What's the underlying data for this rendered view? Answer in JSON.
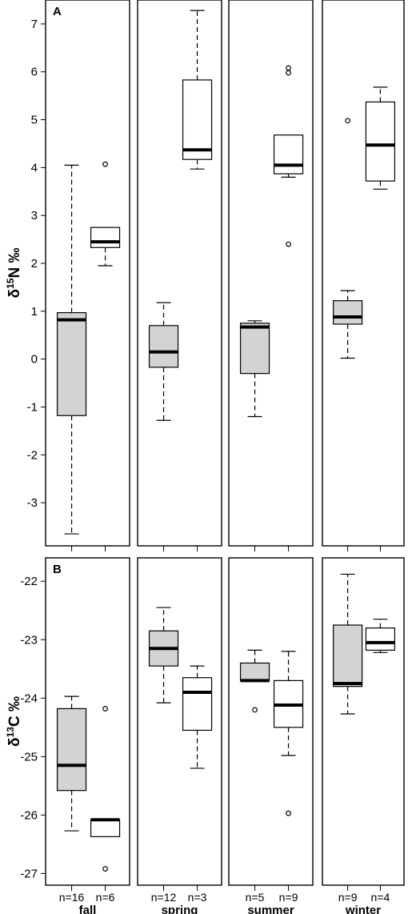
{
  "chart_data": [
    {
      "type": "boxplot",
      "panel": "A",
      "ylabel_main": "δ",
      "ylabel_sup": "15",
      "ylabel_rest": "N ‰",
      "ylim": [
        -3.9,
        7.5
      ],
      "yticks": [
        -3,
        -2,
        -1,
        0,
        1,
        2,
        3,
        4,
        5,
        6,
        7
      ],
      "fill_colors": [
        "#d3d3d3",
        "#ffffff"
      ],
      "groups": [
        {
          "season": "fall",
          "boxes": [
            {
              "n": "n=16",
              "min": -3.65,
              "q1": -1.18,
              "median": 0.82,
              "q3": 0.97,
              "max": 4.05,
              "outliers": []
            },
            {
              "n": "n=6",
              "min": 1.95,
              "q1": 2.33,
              "median": 2.45,
              "q3": 2.75,
              "max": 2.75,
              "outliers": [
                4.07
              ]
            }
          ]
        },
        {
          "season": "spring",
          "boxes": [
            {
              "n": "n=12",
              "min": -1.28,
              "q1": -0.17,
              "median": 0.15,
              "q3": 0.7,
              "max": 1.18,
              "outliers": []
            },
            {
              "n": "n=3",
              "min": 3.97,
              "q1": 4.17,
              "median": 4.37,
              "q3": 5.83,
              "max": 7.28,
              "outliers": []
            }
          ]
        },
        {
          "season": "summer",
          "boxes": [
            {
              "n": "n=5",
              "min": -1.2,
              "q1": -0.3,
              "median": 0.67,
              "q3": 0.75,
              "max": 0.8,
              "outliers": []
            },
            {
              "n": "n=9",
              "min": 3.8,
              "q1": 3.87,
              "median": 4.05,
              "q3": 4.68,
              "max": 4.68,
              "outliers": [
                6.08,
                5.98,
                2.4
              ]
            }
          ]
        },
        {
          "season": "winter",
          "boxes": [
            {
              "n": "n=9",
              "min": 0.02,
              "q1": 0.73,
              "median": 0.88,
              "q3": 1.22,
              "max": 1.43,
              "outliers": [
                4.98
              ]
            },
            {
              "n": "n=4",
              "min": 3.55,
              "q1": 3.72,
              "median": 4.47,
              "q3": 5.37,
              "max": 5.68,
              "outliers": []
            }
          ]
        }
      ]
    },
    {
      "type": "boxplot",
      "panel": "B",
      "ylabel_main": "δ",
      "ylabel_sup": "13",
      "ylabel_rest": "C ‰",
      "ylim": [
        -27.2,
        -21.6
      ],
      "yticks": [
        -27,
        -26,
        -25,
        -24,
        -23,
        -22
      ],
      "fill_colors": [
        "#d3d3d3",
        "#ffffff"
      ],
      "groups": [
        {
          "season": "fall",
          "boxes": [
            {
              "n": "n=16",
              "min": -26.27,
              "q1": -25.58,
              "median": -25.15,
              "q3": -24.18,
              "max": -23.97,
              "outliers": []
            },
            {
              "n": "n=6",
              "min": -26.37,
              "q1": -26.37,
              "median": -26.08,
              "q3": -26.08,
              "max": -26.08,
              "outliers": [
                -24.18,
                -26.92
              ]
            }
          ]
        },
        {
          "season": "spring",
          "boxes": [
            {
              "n": "n=12",
              "min": -24.08,
              "q1": -23.45,
              "median": -23.15,
              "q3": -22.85,
              "max": -22.45,
              "outliers": []
            },
            {
              "n": "n=3",
              "min": -25.2,
              "q1": -24.55,
              "median": -23.9,
              "q3": -23.65,
              "max": -23.45,
              "outliers": []
            }
          ]
        },
        {
          "season": "summer",
          "boxes": [
            {
              "n": "n=5",
              "min": -23.7,
              "q1": -23.7,
              "median": -23.7,
              "q3": -23.4,
              "max": -23.18,
              "outliers": [
                -24.2
              ]
            },
            {
              "n": "n=9",
              "min": -24.98,
              "q1": -24.5,
              "median": -24.12,
              "q3": -23.7,
              "max": -23.2,
              "outliers": [
                -25.97
              ]
            }
          ]
        },
        {
          "season": "winter",
          "boxes": [
            {
              "n": "n=9",
              "min": -24.27,
              "q1": -23.8,
              "median": -23.75,
              "q3": -22.75,
              "max": -21.88,
              "outliers": []
            },
            {
              "n": "n=4",
              "min": -23.22,
              "q1": -23.18,
              "median": -23.05,
              "q3": -22.8,
              "max": -22.65,
              "outliers": []
            }
          ]
        }
      ]
    }
  ]
}
